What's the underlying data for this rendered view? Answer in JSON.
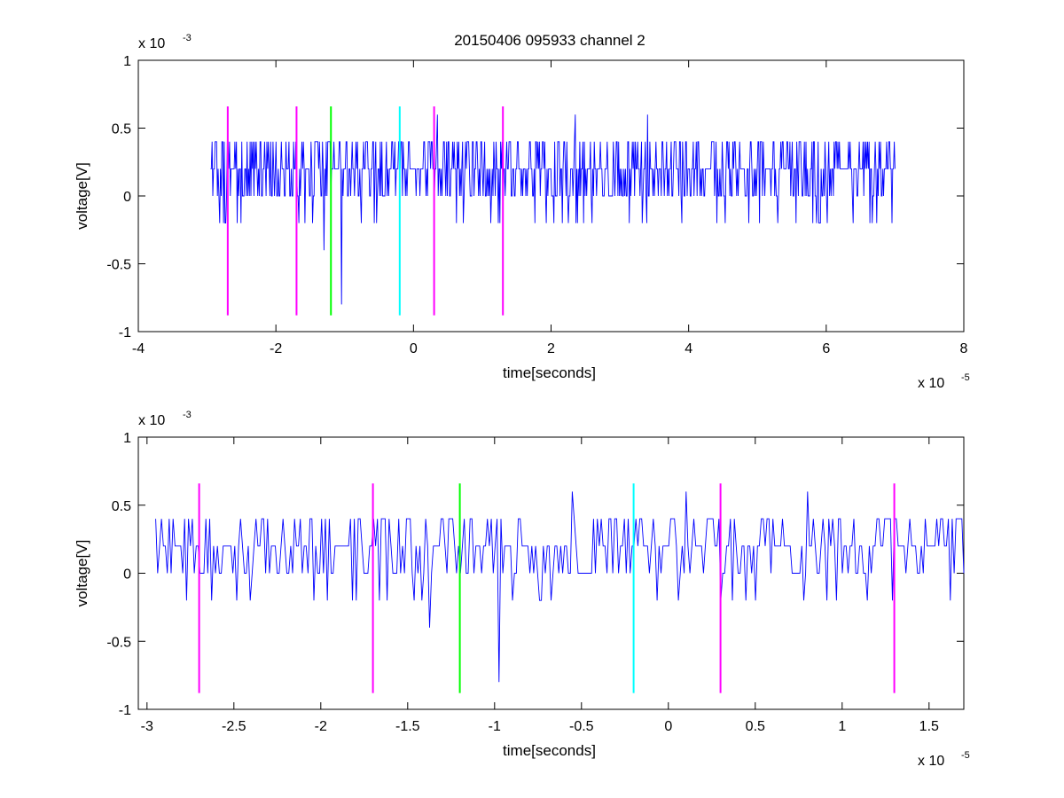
{
  "figure": {
    "title": "20150406 095933 channel 2"
  },
  "chart_data": [
    {
      "type": "line",
      "title": "20150406 095933 channel 2",
      "xlabel": "time[seconds]",
      "ylabel": "voltage[V]",
      "x_multiplier": "x 10",
      "x_exponent": "-5",
      "y_multiplier": "x 10",
      "y_exponent": "-3",
      "xlim": [
        -4,
        8
      ],
      "ylim": [
        -1,
        1
      ],
      "xticks": [
        "-4",
        "-2",
        "0",
        "2",
        "4",
        "6",
        "8"
      ],
      "xtick_values": [
        -4,
        -2,
        0,
        2,
        4,
        6,
        8
      ],
      "yticks": [
        "1",
        "0.5",
        "0",
        "-0.5",
        "-1"
      ],
      "ytick_values": [
        1,
        0.5,
        0,
        -0.5,
        -1
      ],
      "grid": false,
      "series": [
        {
          "color": "#0000ff",
          "x_start": -2.95,
          "x_end": 7.0,
          "baseline_values": [
            0,
            0.2,
            0.4,
            -0.2
          ],
          "notable_peaks": [
            {
              "x": -1.05,
              "y": -0.8
            },
            {
              "x": -1.3,
              "y": -0.4
            },
            {
              "x": 2.35,
              "y": 0.6
            },
            {
              "x": 3.4,
              "y": 0.6
            },
            {
              "x": 0.35,
              "y": 0.6
            }
          ]
        }
      ],
      "vlines": [
        {
          "x": -2.7,
          "color": "#ff00ff",
          "y_range": [
            -0.88,
            0.66
          ]
        },
        {
          "x": -1.7,
          "color": "#ff00ff",
          "y_range": [
            -0.88,
            0.66
          ]
        },
        {
          "x": -1.2,
          "color": "#00ff00",
          "y_range": [
            -0.88,
            0.66
          ]
        },
        {
          "x": -0.2,
          "color": "#00ffff",
          "y_range": [
            -0.88,
            0.66
          ]
        },
        {
          "x": 0.3,
          "color": "#ff00ff",
          "y_range": [
            -0.88,
            0.66
          ]
        },
        {
          "x": 1.3,
          "color": "#ff00ff",
          "y_range": [
            -0.88,
            0.66
          ]
        }
      ]
    },
    {
      "type": "line",
      "title": "",
      "xlabel": "time[seconds]",
      "ylabel": "voltage[V]",
      "x_multiplier": "x 10",
      "x_exponent": "-5",
      "y_multiplier": "x 10",
      "y_exponent": "-3",
      "xlim": [
        -3.05,
        1.7
      ],
      "ylim": [
        -1,
        1
      ],
      "xticks": [
        "-3",
        "-2.5",
        "-2",
        "-1.5",
        "-1",
        "-0.5",
        "0",
        "0.5",
        "1",
        "1.5"
      ],
      "xtick_values": [
        -3,
        -2.5,
        -2,
        -1.5,
        -1,
        -0.5,
        0,
        0.5,
        1,
        1.5
      ],
      "yticks": [
        "1",
        "0.5",
        "0",
        "-0.5",
        "-1"
      ],
      "ytick_values": [
        1,
        0.5,
        0,
        -0.5,
        -1
      ],
      "grid": false,
      "series": [
        {
          "color": "#0000ff",
          "x_start": -2.95,
          "x_end": 1.7,
          "baseline_values": [
            0,
            0.2,
            0.4,
            -0.2
          ],
          "notable_peaks": [
            {
              "x": -0.97,
              "y": -0.8
            },
            {
              "x": -1.37,
              "y": -0.4
            },
            {
              "x": -0.55,
              "y": 0.6
            },
            {
              "x": 0.1,
              "y": 0.6
            },
            {
              "x": 0.8,
              "y": 0.6
            }
          ]
        }
      ],
      "vlines": [
        {
          "x": -2.7,
          "color": "#ff00ff",
          "y_range": [
            -0.88,
            0.66
          ]
        },
        {
          "x": -1.7,
          "color": "#ff00ff",
          "y_range": [
            -0.88,
            0.66
          ]
        },
        {
          "x": -1.2,
          "color": "#00ff00",
          "y_range": [
            -0.88,
            0.66
          ]
        },
        {
          "x": -0.2,
          "color": "#00ffff",
          "y_range": [
            -0.88,
            0.66
          ]
        },
        {
          "x": 0.3,
          "color": "#ff00ff",
          "y_range": [
            -0.88,
            0.66
          ]
        },
        {
          "x": 1.3,
          "color": "#ff00ff",
          "y_range": [
            -0.88,
            0.66
          ]
        }
      ]
    }
  ]
}
